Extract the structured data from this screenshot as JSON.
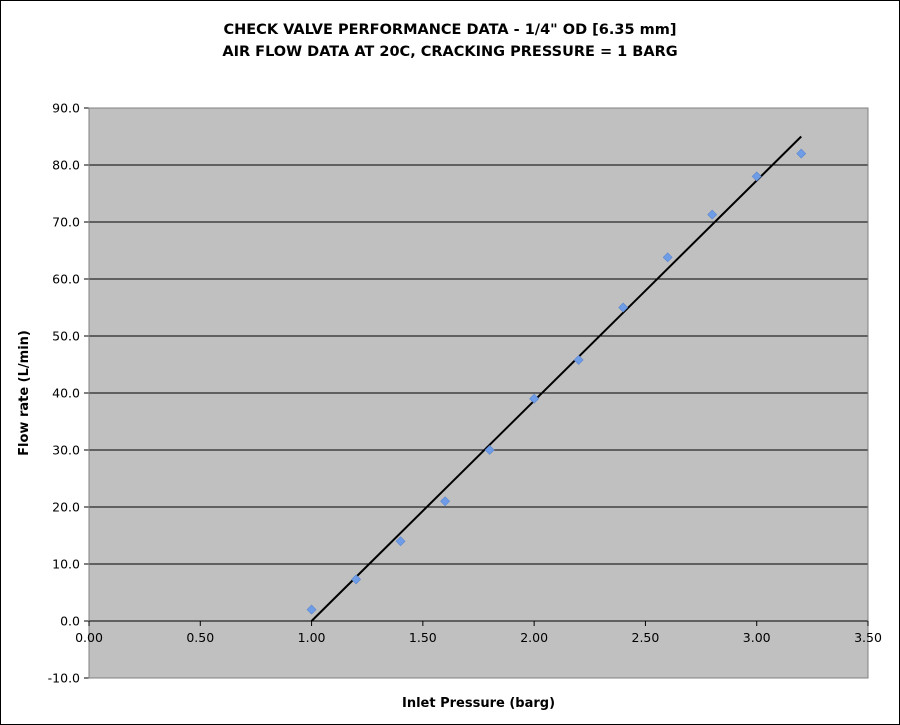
{
  "chart_data": {
    "type": "scatter",
    "title": "CHECK VALVE PERFORMANCE DATA - 1/4\" OD [6.35 mm]",
    "subtitle": "AIR FLOW DATA AT 20C, CRACKING PRESSURE = 1 BARG",
    "xlabel": "Inlet Pressure (barg)",
    "ylabel": "Flow rate (L/min)",
    "xlim": [
      0,
      3.5
    ],
    "ylim": [
      -10,
      90
    ],
    "x_ticks": [
      "0.00",
      "0.50",
      "1.00",
      "1.50",
      "2.00",
      "2.50",
      "3.00",
      "3.50"
    ],
    "y_ticks": [
      "-10.0",
      "0.0",
      "10.0",
      "20.0",
      "30.0",
      "40.0",
      "50.0",
      "60.0",
      "70.0",
      "80.0",
      "90.0"
    ],
    "grid": "horizontal",
    "legend": "none",
    "series": [
      {
        "x": [
          1.0,
          1.2,
          1.4,
          1.6,
          1.8,
          2.0,
          2.2,
          2.4,
          2.6,
          2.8,
          3.0,
          3.2
        ],
        "y": [
          2.0,
          7.3,
          14.0,
          21.0,
          30.0,
          39.0,
          45.8,
          55.0,
          63.8,
          71.3,
          78.0,
          82.0
        ],
        "color": "#6f9ce6",
        "marker": "diamond"
      }
    ],
    "trendline": {
      "x": [
        1.0,
        3.2
      ],
      "y": [
        0.0,
        85.0
      ],
      "color": "#000000"
    },
    "plot_background": "#c0c0c0"
  }
}
